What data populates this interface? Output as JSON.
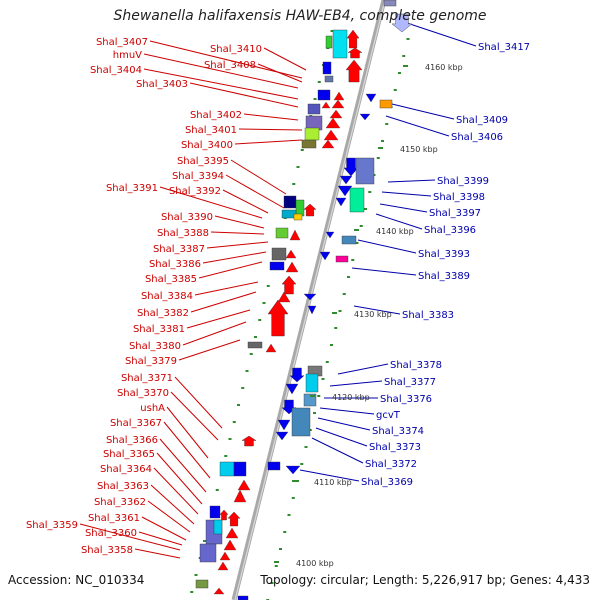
{
  "title": "Shewanella halifaxensis HAW-EB4, complete genome",
  "footer": {
    "accession": "Accession: NC_010334",
    "topology": "Topology: circular; Length: 5,226,917 bp; Genes: 4,433"
  },
  "scale_ticks": [
    "4160 kbp",
    "4150 kbp",
    "4140 kbp",
    "4130 kbp",
    "4120 kbp",
    "4110 kbp",
    "4100 kbp"
  ],
  "genes_left": [
    "Shal_3407",
    "hmuV",
    "Shal_3404",
    "Shal_3403",
    "Shal_3410",
    "Shal_3408",
    "Shal_3402",
    "Shal_3401",
    "Shal_3400",
    "Shal_3395",
    "Shal_3394",
    "Shal_3391",
    "Shal_3392",
    "Shal_3390",
    "Shal_3388",
    "Shal_3387",
    "Shal_3386",
    "Shal_3385",
    "Shal_3384",
    "Shal_3382",
    "Shal_3381",
    "Shal_3380",
    "Shal_3379",
    "Shal_3371",
    "Shal_3370",
    "ushA",
    "Shal_3367",
    "Shal_3366",
    "Shal_3365",
    "Shal_3364",
    "Shal_3363",
    "Shal_3362",
    "Shal_3361",
    "Shal_3359",
    "Shal_3360",
    "Shal_3358"
  ],
  "genes_right": [
    "Shal_3417",
    "Shal_3409",
    "Shal_3406",
    "Shal_3399",
    "Shal_3398",
    "Shal_3397",
    "Shal_3396",
    "Shal_3393",
    "Shal_3389",
    "Shal_3383",
    "Shal_3378",
    "Shal_3377",
    "Shal_3376",
    "gcvT",
    "Shal_3374",
    "Shal_3373",
    "Shal_3372",
    "Shal_3369"
  ],
  "colors": {
    "forward_strand_label": "#cc0000",
    "reverse_strand_label": "#0000aa",
    "backbone": "#a0a0a0",
    "scale_tick": "#2e8b2e"
  }
}
